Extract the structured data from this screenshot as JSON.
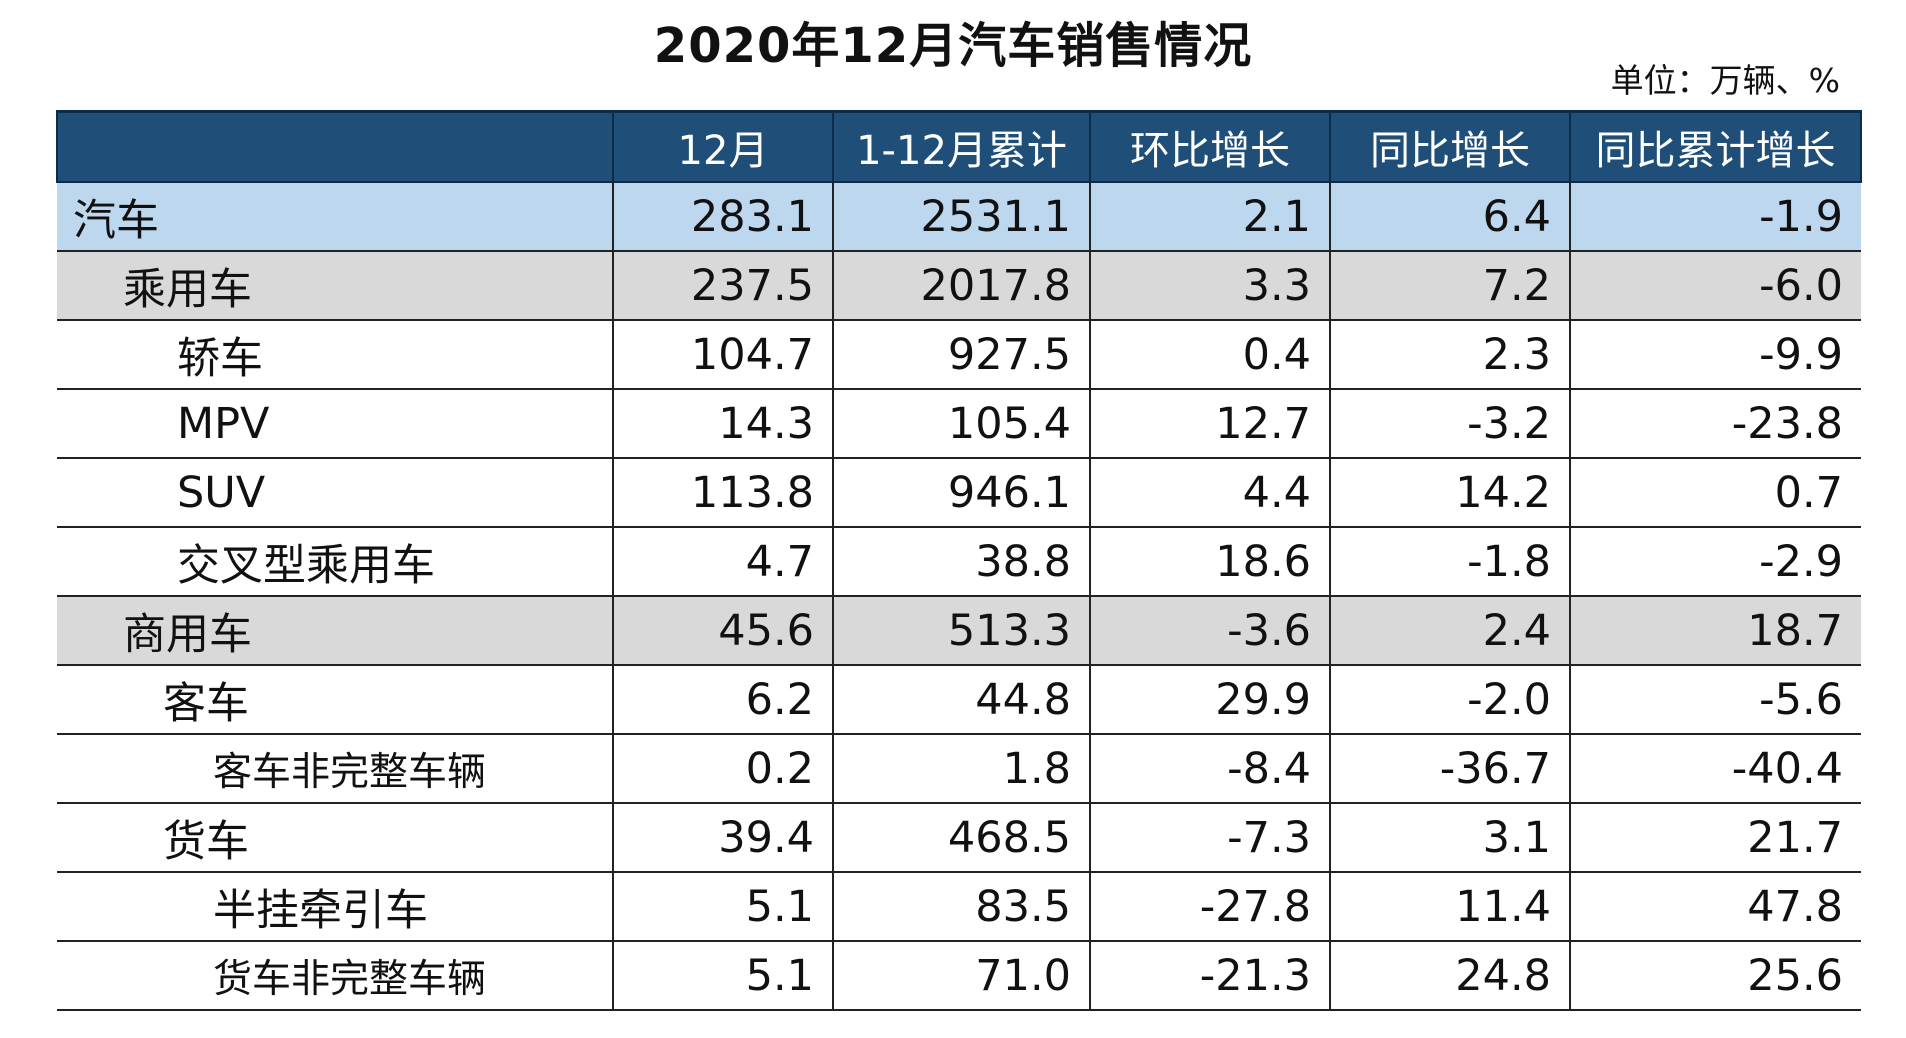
{
  "title": "2020年12月汽车销售情况",
  "unit": "单位：万辆、%",
  "table": {
    "headers": [
      "",
      "12月",
      "1-12月累计",
      "环比增长",
      "同比增长",
      "同比累计增长"
    ],
    "rows": [
      {
        "label": "汽车",
        "values": [
          "283.1",
          "2531.1",
          "2.1",
          "6.4",
          "-1.9"
        ]
      },
      {
        "label": "乘用车",
        "values": [
          "237.5",
          "2017.8",
          "3.3",
          "7.2",
          "-6.0"
        ]
      },
      {
        "label": "轿车",
        "values": [
          "104.7",
          "927.5",
          "0.4",
          "2.3",
          "-9.9"
        ]
      },
      {
        "label": "MPV",
        "values": [
          "14.3",
          "105.4",
          "12.7",
          "-3.2",
          "-23.8"
        ]
      },
      {
        "label": "SUV",
        "values": [
          "113.8",
          "946.1",
          "4.4",
          "14.2",
          "0.7"
        ]
      },
      {
        "label": "交叉型乘用车",
        "values": [
          "4.7",
          "38.8",
          "18.6",
          "-1.8",
          "-2.9"
        ]
      },
      {
        "label": "商用车",
        "values": [
          "45.6",
          "513.3",
          "-3.6",
          "2.4",
          "18.7"
        ]
      },
      {
        "label": "客车",
        "values": [
          "6.2",
          "44.8",
          "29.9",
          "-2.0",
          "-5.6"
        ]
      },
      {
        "label": "客车非完整车辆",
        "values": [
          "0.2",
          "1.8",
          "-8.4",
          "-36.7",
          "-40.4"
        ]
      },
      {
        "label": "货车",
        "values": [
          "39.4",
          "468.5",
          "-7.3",
          "3.1",
          "21.7"
        ]
      },
      {
        "label": "半挂牵引车",
        "values": [
          "5.1",
          "83.5",
          "-27.8",
          "11.4",
          "47.8"
        ]
      },
      {
        "label": "货车非完整车辆",
        "values": [
          "5.1",
          "71.0",
          "-21.3",
          "24.8",
          "25.6"
        ]
      }
    ]
  },
  "colors": {
    "header_bg": "#1f4e79",
    "total_row_bg": "#bdd7ee",
    "category_row_bg": "#d9d9d9"
  }
}
